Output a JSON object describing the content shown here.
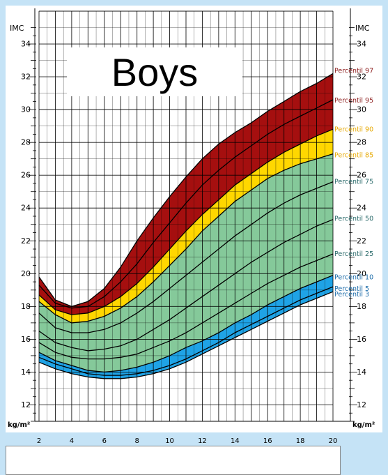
{
  "title": "Boys",
  "left_axis_title": "IMC",
  "right_axis_title": "IMC",
  "left_unit": "kg/m²",
  "right_unit": "kg/m²",
  "colors": {
    "red_band": "#a50f0f",
    "yellow_band": "#ffd700",
    "green_band": "#85c99a",
    "blue_band": "#1fa3e6",
    "p97_label": "#8b1a1a",
    "p90_label": "#e6a800",
    "p75_label": "#2a6a6a",
    "p3_label": "#1a6aa8"
  },
  "chart_data": {
    "type": "line",
    "x": [
      2,
      3,
      4,
      5,
      6,
      7,
      8,
      9,
      10,
      11,
      12,
      13,
      14,
      15,
      16,
      17,
      18,
      19,
      20
    ],
    "x_ticks": [
      "2",
      "4",
      "6",
      "8",
      "10",
      "12",
      "14",
      "16",
      "18",
      "20"
    ],
    "y_ticks": [
      "12",
      "14",
      "16",
      "18",
      "20",
      "22",
      "24",
      "26",
      "28",
      "30",
      "32",
      "34"
    ],
    "xlim": [
      2,
      20
    ],
    "ylim": [
      11,
      36
    ],
    "grid": true,
    "series": [
      {
        "name": "Percentil 97",
        "values": [
          19.8,
          18.4,
          18.0,
          18.3,
          19.1,
          20.4,
          22.0,
          23.4,
          24.7,
          25.9,
          27.0,
          27.9,
          28.6,
          29.2,
          29.9,
          30.5,
          31.1,
          31.6,
          32.2
        ]
      },
      {
        "name": "Percentil 95",
        "values": [
          19.3,
          18.2,
          17.9,
          18.0,
          18.6,
          19.5,
          20.6,
          21.9,
          23.1,
          24.3,
          25.4,
          26.3,
          27.1,
          27.8,
          28.5,
          29.1,
          29.6,
          30.1,
          30.6
        ]
      },
      {
        "name": "Percentil 90",
        "values": [
          18.7,
          17.8,
          17.5,
          17.6,
          18.0,
          18.6,
          19.4,
          20.4,
          21.5,
          22.6,
          23.6,
          24.5,
          25.4,
          26.1,
          26.8,
          27.4,
          27.9,
          28.4,
          28.8
        ]
      },
      {
        "name": "Percentil 85",
        "values": [
          18.3,
          17.5,
          17.0,
          17.1,
          17.4,
          17.9,
          18.6,
          19.5,
          20.5,
          21.5,
          22.6,
          23.5,
          24.4,
          25.1,
          25.8,
          26.3,
          26.7,
          27.0,
          27.3
        ]
      },
      {
        "name": "Percentil 75",
        "values": [
          17.6,
          16.7,
          16.4,
          16.4,
          16.6,
          17.0,
          17.6,
          18.3,
          19.1,
          19.9,
          20.7,
          21.5,
          22.3,
          23.0,
          23.7,
          24.3,
          24.8,
          25.2,
          25.6
        ]
      },
      {
        "name": "Percentil 50",
        "values": [
          16.5,
          15.8,
          15.5,
          15.3,
          15.4,
          15.6,
          16.0,
          16.6,
          17.2,
          17.9,
          18.6,
          19.3,
          20.0,
          20.7,
          21.3,
          21.9,
          22.4,
          22.9,
          23.3
        ]
      },
      {
        "name": "Percentil 25",
        "values": [
          15.8,
          15.2,
          14.9,
          14.8,
          14.8,
          14.9,
          15.1,
          15.5,
          15.9,
          16.4,
          17.0,
          17.6,
          18.2,
          18.8,
          19.4,
          19.9,
          20.4,
          20.8,
          21.2
        ]
      },
      {
        "name": "Percentil 10",
        "values": [
          15.2,
          14.7,
          14.4,
          14.1,
          14.0,
          14.1,
          14.3,
          14.6,
          15.0,
          15.5,
          15.9,
          16.4,
          17.0,
          17.5,
          18.1,
          18.6,
          19.1,
          19.5,
          19.9
        ]
      },
      {
        "name": "Percentil 5",
        "values": [
          14.9,
          14.5,
          14.2,
          13.9,
          13.8,
          13.8,
          13.9,
          14.1,
          14.4,
          14.8,
          15.3,
          15.8,
          16.4,
          16.9,
          17.4,
          17.9,
          18.4,
          18.8,
          19.2
        ]
      },
      {
        "name": "Percentil 3",
        "values": [
          14.6,
          14.2,
          13.9,
          13.7,
          13.6,
          13.6,
          13.7,
          13.9,
          14.2,
          14.6,
          15.1,
          15.6,
          16.1,
          16.6,
          17.1,
          17.6,
          18.1,
          18.5,
          18.9
        ]
      }
    ]
  }
}
